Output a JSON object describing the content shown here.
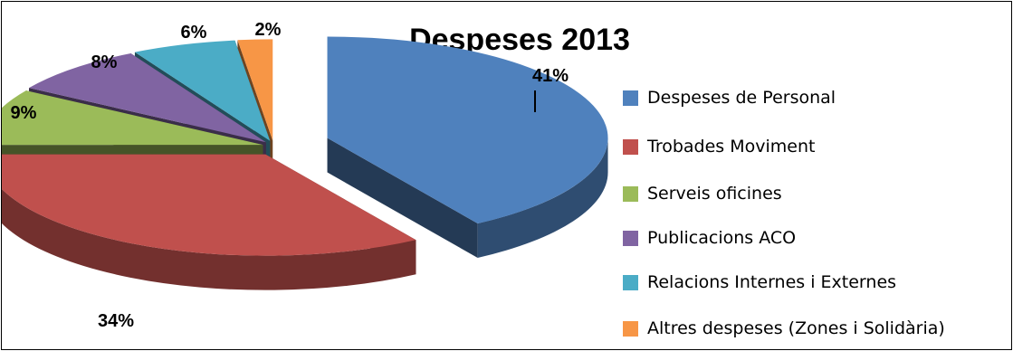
{
  "chart_data": {
    "type": "pie",
    "title": "Despeses 2013",
    "categories": [
      "Despeses de Personal",
      "Trobades Moviment",
      "Serveis oficines",
      "Publicacions ACO",
      "Relacions Internes i Externes",
      "Altres despeses (Zones i Solidària)"
    ],
    "values": [
      41,
      34,
      9,
      8,
      6,
      2
    ],
    "labels": [
      "41%",
      "34%",
      "9%",
      "8%",
      "6%",
      "2%"
    ],
    "colors": [
      "#4f81bd",
      "#c0504d",
      "#9bbb59",
      "#8064a2",
      "#4bacc6",
      "#f79646"
    ],
    "legend_position": "right",
    "style": "3d-exploded"
  }
}
